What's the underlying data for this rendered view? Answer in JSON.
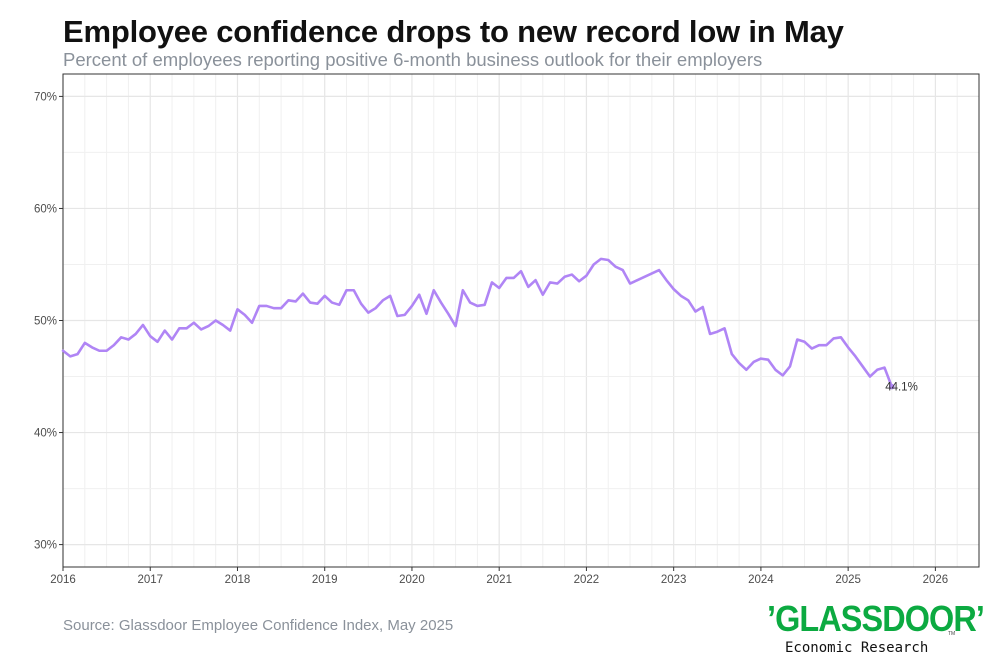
{
  "chart_data": {
    "type": "line",
    "title": "Employee confidence drops to new record low in May",
    "subtitle": "Percent of employees reporting positive 6-month business outlook for their employers",
    "xlabel": "",
    "ylabel": "",
    "xlim": [
      2016,
      2026.5
    ],
    "ylim": [
      28,
      72
    ],
    "x_ticks": [
      2016,
      2017,
      2018,
      2019,
      2020,
      2021,
      2022,
      2023,
      2024,
      2025,
      2026
    ],
    "x_tick_labels": [
      "2016",
      "2017",
      "2018",
      "2019",
      "2020",
      "2021",
      "2022",
      "2023",
      "2024",
      "2025",
      "2026"
    ],
    "y_ticks": [
      30,
      40,
      50,
      60,
      70
    ],
    "y_tick_labels": [
      "30%",
      "40%",
      "50%",
      "60%",
      "70%"
    ],
    "grid": true,
    "line_color": "#b085f5",
    "series": [
      {
        "name": "Employee confidence",
        "start": 2016,
        "step": 0.08333333,
        "values": [
          47.3,
          46.8,
          47.0,
          48.0,
          47.6,
          47.3,
          47.3,
          47.8,
          48.5,
          48.3,
          48.8,
          49.6,
          48.6,
          48.1,
          49.1,
          48.3,
          49.3,
          49.3,
          49.8,
          49.2,
          49.5,
          50.0,
          49.6,
          49.1,
          51.0,
          50.5,
          49.8,
          51.3,
          51.3,
          51.1,
          51.1,
          51.8,
          51.7,
          52.4,
          51.6,
          51.5,
          52.2,
          51.6,
          51.4,
          52.7,
          52.7,
          51.5,
          50.7,
          51.1,
          51.8,
          52.2,
          50.4,
          50.5,
          51.3,
          52.3,
          50.6,
          52.7,
          51.6,
          50.6,
          49.5,
          52.7,
          51.6,
          51.3,
          51.4,
          53.4,
          52.9,
          53.8,
          53.8,
          54.4,
          53.0,
          53.6,
          52.3,
          53.4,
          53.3,
          53.9,
          54.1,
          53.5,
          54.0,
          55.0,
          55.5,
          55.4,
          54.8,
          54.5,
          53.3,
          53.6,
          53.9,
          54.2,
          54.5,
          53.6,
          52.8,
          52.2,
          51.8,
          50.8,
          51.2,
          48.8,
          49.0,
          49.3,
          47.0,
          46.2,
          45.6,
          46.3,
          46.6,
          46.5,
          45.6,
          45.1,
          45.9,
          48.3,
          48.1,
          47.5,
          47.8,
          47.8,
          48.4,
          48.5,
          47.6,
          46.8,
          45.9,
          45.0,
          45.6,
          45.8,
          44.1
        ]
      }
    ],
    "annotations": [
      {
        "text": "44.1%",
        "x": 2025.333,
        "y": 44.1
      }
    ]
  },
  "source": "Source: Glassdoor Employee Confidence Index, May 2025",
  "brand": {
    "logo": "’GLASSDOOR’",
    "tm": "TM",
    "subtitle": "Economic Research",
    "color": "#0caa41"
  }
}
